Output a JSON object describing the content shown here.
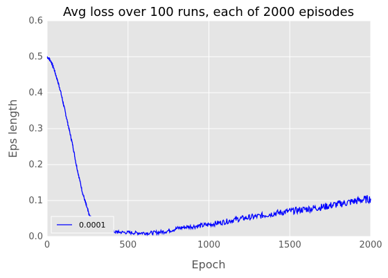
{
  "chart_data": {
    "type": "line",
    "title": "Avg loss over 100 runs, each of 2000 episodes",
    "xlabel": "Epoch",
    "ylabel": "Eps length",
    "xlim": [
      0,
      2000
    ],
    "ylim": [
      0.0,
      0.6
    ],
    "x_ticks": [
      0,
      500,
      1000,
      1500,
      2000
    ],
    "y_ticks": [
      0.0,
      0.1,
      0.2,
      0.3,
      0.4,
      0.5,
      0.6
    ],
    "x_tick_labels": [
      "0",
      "500",
      "1000",
      "1500",
      "2000"
    ],
    "y_tick_labels": [
      "0.0",
      "0.1",
      "0.2",
      "0.3",
      "0.4",
      "0.5",
      "0.6"
    ],
    "grid": true,
    "legend_position": "lower-left",
    "background_color": "#e5e5e5",
    "grid_color": "#ffffff",
    "series": [
      {
        "name": "0.0001",
        "color": "#0000ff",
        "x": [
          0,
          20,
          40,
          60,
          80,
          100,
          120,
          140,
          160,
          180,
          200,
          220,
          240,
          260,
          280,
          300,
          320,
          350,
          380,
          420,
          450,
          500,
          550,
          600,
          650,
          700,
          750,
          800,
          850,
          900,
          950,
          1000,
          1050,
          1100,
          1150,
          1200,
          1250,
          1300,
          1350,
          1400,
          1450,
          1500,
          1550,
          1600,
          1650,
          1700,
          1750,
          1800,
          1850,
          1900,
          1950,
          2000
        ],
        "y": [
          0.5,
          0.49,
          0.47,
          0.44,
          0.41,
          0.37,
          0.33,
          0.29,
          0.25,
          0.2,
          0.16,
          0.12,
          0.09,
          0.06,
          0.045,
          0.035,
          0.028,
          0.02,
          0.015,
          0.013,
          0.012,
          0.011,
          0.01,
          0.01,
          0.01,
          0.012,
          0.016,
          0.022,
          0.026,
          0.028,
          0.03,
          0.033,
          0.037,
          0.041,
          0.046,
          0.05,
          0.053,
          0.056,
          0.06,
          0.064,
          0.067,
          0.07,
          0.073,
          0.076,
          0.079,
          0.082,
          0.086,
          0.09,
          0.094,
          0.098,
          0.102,
          0.105
        ]
      }
    ]
  }
}
